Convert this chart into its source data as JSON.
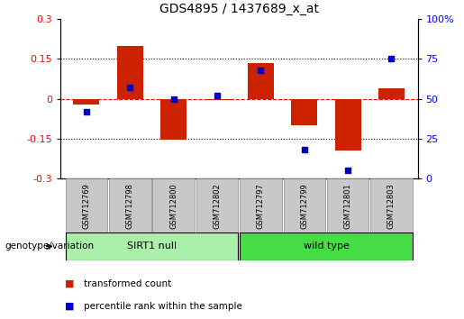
{
  "title": "GDS4895 / 1437689_x_at",
  "samples": [
    "GSM712769",
    "GSM712798",
    "GSM712800",
    "GSM712802",
    "GSM712797",
    "GSM712799",
    "GSM712801",
    "GSM712803"
  ],
  "group_sirt1": {
    "label": "SIRT1 null",
    "start": 0,
    "end": 3,
    "color": "#aaf0aa"
  },
  "group_wild": {
    "label": "wild type",
    "start": 4,
    "end": 7,
    "color": "#44dd44"
  },
  "transformed_count": [
    -0.02,
    0.2,
    -0.155,
    -0.005,
    0.135,
    -0.1,
    -0.195,
    0.04
  ],
  "percentile_rank": [
    42,
    57,
    50,
    52,
    68,
    18,
    5,
    75
  ],
  "bar_color": "#CC2200",
  "dot_color": "#0000CC",
  "ylim_left": [
    -0.3,
    0.3
  ],
  "ylim_right": [
    0,
    100
  ],
  "yticks_left": [
    -0.3,
    -0.15,
    0,
    0.15,
    0.3
  ],
  "ytick_labels_left": [
    "-0.3",
    "-0.15",
    "0",
    "0.15",
    "0.3"
  ],
  "yticks_right": [
    0,
    25,
    50,
    75,
    100
  ],
  "ytick_labels_right": [
    "0",
    "25",
    "50",
    "75",
    "100%"
  ],
  "hlines_dotted": [
    0.15,
    -0.15
  ],
  "hline_dashed": 0,
  "genotype_label": "genotype/variation",
  "legend_items": [
    {
      "label": "transformed count",
      "color": "#CC2200"
    },
    {
      "label": "percentile rank within the sample",
      "color": "#0000CC"
    }
  ],
  "bar_width": 0.6,
  "sample_box_color": "#C8C8C8",
  "figsize": [
    5.15,
    3.54
  ],
  "dpi": 100
}
